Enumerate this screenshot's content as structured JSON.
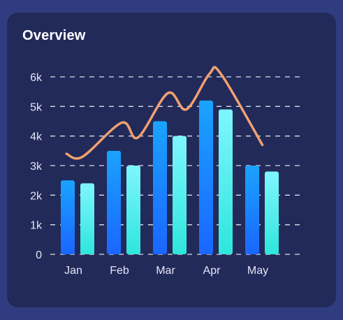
{
  "card": {
    "title": "Overview"
  },
  "colors": {
    "background": "#2f3d80",
    "card": "#222a59",
    "bar_primary_top": "#1aa3ff",
    "bar_primary_bottom": "#1a66ff",
    "bar_secondary_top": "#7ff5ff",
    "bar_secondary_bottom": "#2ee6dc",
    "line": "#f0a070",
    "grid": "#ffffff",
    "text": "#e3e6f5"
  },
  "chart_data": {
    "type": "bar",
    "categories": [
      "Jan",
      "Feb",
      "Mar",
      "Apr",
      "May"
    ],
    "series": [
      {
        "values": [
          2500,
          3500,
          4500,
          5200,
          3000
        ]
      },
      {
        "values": [
          2400,
          3000,
          4000,
          4900,
          2800
        ]
      }
    ],
    "line_overlay": {
      "type": "line",
      "smooth": true,
      "x": [
        0.35,
        0.7,
        1.55,
        1.9,
        2.55,
        2.95,
        3.45,
        3.7,
        4.6
      ],
      "y": [
        3400,
        3300,
        4450,
        3950,
        5450,
        4900,
        6100,
        6100,
        3700
      ]
    },
    "yticks": [
      "0",
      "1k",
      "2k",
      "3k",
      "4k",
      "5k",
      "6k"
    ],
    "ylim": [
      0,
      6000
    ],
    "grid": true,
    "grid_style": "dashed",
    "legend": "none"
  }
}
